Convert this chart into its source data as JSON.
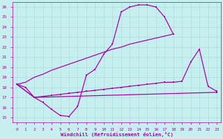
{
  "bg_color": "#c8eff0",
  "grid_color": "#a8dede",
  "line_color": "#aa00aa",
  "xlabel": "Windchill (Refroidissement éolien,°C)",
  "xlim": [
    -0.5,
    23.5
  ],
  "ylim": [
    14.5,
    26.5
  ],
  "xticks": [
    0,
    1,
    2,
    3,
    4,
    5,
    6,
    7,
    8,
    9,
    10,
    11,
    12,
    13,
    14,
    15,
    16,
    17,
    18,
    19,
    20,
    21,
    22,
    23
  ],
  "yticks": [
    15,
    16,
    17,
    18,
    19,
    20,
    21,
    22,
    23,
    24,
    25,
    26
  ],
  "line1_x": [
    0,
    1,
    2,
    3,
    4,
    5,
    6,
    7,
    8,
    9,
    10,
    11,
    12,
    13,
    14,
    15,
    16,
    17,
    18
  ],
  "line1_y": [
    18.3,
    18.0,
    17.0,
    16.5,
    15.8,
    15.2,
    15.1,
    16.1,
    19.2,
    19.8,
    21.3,
    22.3,
    25.5,
    26.0,
    26.2,
    26.2,
    26.0,
    25.0,
    23.3
  ],
  "line2_x": [
    0,
    1,
    2,
    3,
    4,
    5,
    6,
    7,
    8,
    9,
    10,
    11,
    12,
    13,
    14,
    15,
    16,
    17,
    18,
    19,
    20,
    21,
    22,
    23
  ],
  "line2_y": [
    18.3,
    18.5,
    19.0,
    19.3,
    19.7,
    20.0,
    20.3,
    20.6,
    20.9,
    21.2,
    21.5,
    21.8,
    22.0,
    22.3,
    22.5,
    22.7,
    22.9,
    23.1,
    23.3,
    null,
    null,
    null,
    null,
    null
  ],
  "line3_x": [
    0,
    2,
    3,
    4,
    5,
    6,
    7,
    8,
    9,
    10,
    11,
    12,
    13,
    14,
    15,
    16,
    17,
    18,
    19,
    20,
    21,
    22,
    23
  ],
  "line3_y": [
    18.3,
    17.0,
    17.1,
    17.2,
    17.3,
    17.4,
    17.5,
    17.6,
    17.7,
    17.8,
    17.9,
    18.0,
    18.1,
    18.2,
    18.3,
    18.4,
    18.5,
    18.5,
    18.6,
    20.5,
    21.8,
    18.1,
    17.6
  ],
  "line4_x": [
    0,
    2,
    23
  ],
  "line4_y": [
    18.3,
    17.0,
    17.5
  ]
}
